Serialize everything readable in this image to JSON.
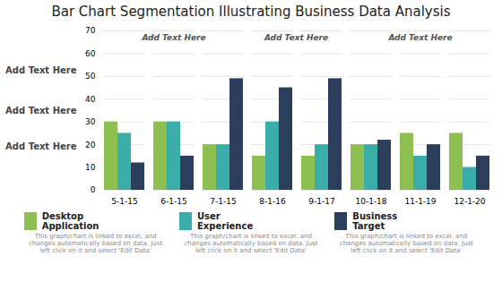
{
  "chart_data": {
    "type": "bar",
    "title": "Bar Chart Segmentation Illustrating Business Data Analysis",
    "categories": [
      "5-1-15",
      "6-1-15",
      "7-1-15",
      "8-1-16",
      "9-1-17",
      "10-1-18",
      "11-1-19",
      "12-1-20"
    ],
    "series": [
      {
        "name": "Desktop\nApplication",
        "color": "#8dc050",
        "values": [
          30,
          30,
          20,
          15,
          15,
          20,
          25,
          25
        ]
      },
      {
        "name": "User\nExperience",
        "color": "#3aada8",
        "values": [
          25,
          30,
          20,
          30,
          20,
          20,
          15,
          10
        ]
      },
      {
        "name": "Business\nTarget",
        "color": "#2b3f5c",
        "values": [
          12,
          15,
          49,
          45,
          49,
          22,
          20,
          15
        ]
      }
    ],
    "ylim": [
      0,
      70
    ],
    "yticks": [
      0,
      10,
      20,
      30,
      40,
      50,
      60,
      70
    ],
    "grid": true,
    "legend": "bottom",
    "annotations": [
      "Add Text Here",
      "Add Text Here",
      "Add Text Here",
      "Add Text Here",
      "Add Text Here",
      "Add Text Here"
    ],
    "caption": "This graph/chart is linked to excel, and changes automatically based on data. Just left click on it and select 'Edit Data'"
  }
}
